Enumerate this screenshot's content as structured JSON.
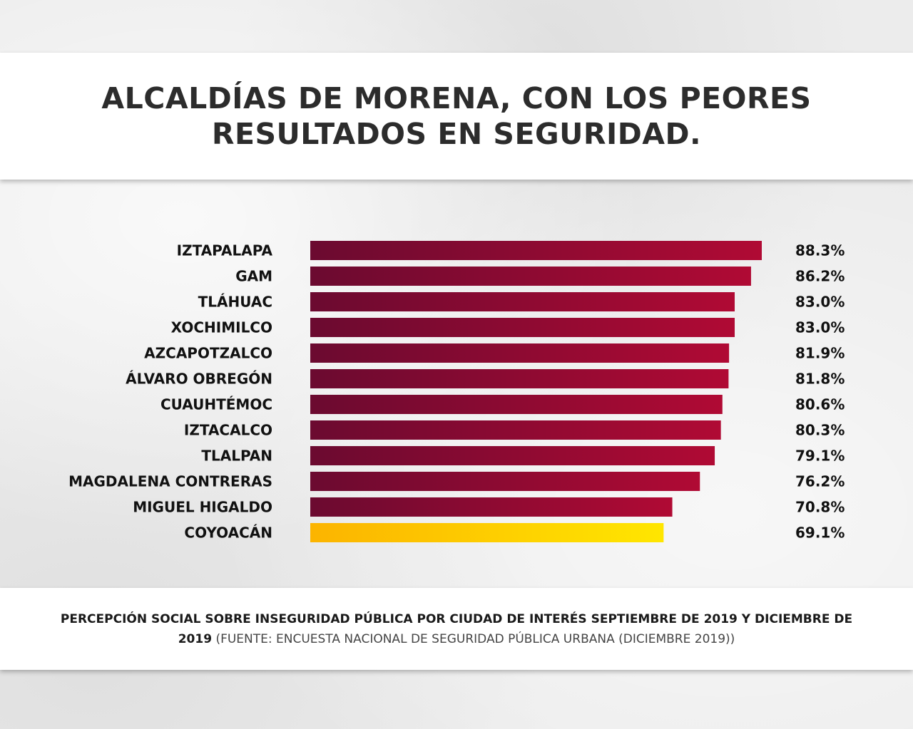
{
  "title": "ALCALDÍAS DE MORENA, CON LOS PEORES RESULTADOS EN SEGURIDAD.",
  "colors": {
    "bar_dark_start": "#6b0a30",
    "bar_dark_end": "#b00a34",
    "bar_highlight_start": "#fcb400",
    "bar_highlight_end": "#ffe600",
    "text": "#111111"
  },
  "chart_data": {
    "type": "bar",
    "orientation": "horizontal",
    "title": "",
    "xlabel": "",
    "ylabel": "",
    "categories": [
      "IZTAPALAPA",
      "GAM",
      "TLÁHUAC",
      "XOCHIMILCO",
      "AZCAPOTZALCO",
      "ÁLVARO OBREGÓN",
      "CUAUHTÉMOC",
      "IZTACALCO",
      "TLALPAN",
      "MAGDALENA CONTRERAS",
      "MIGUEL HIGALDO",
      "COYOACÁN"
    ],
    "values": [
      88.3,
      86.2,
      83.0,
      83.0,
      81.9,
      81.8,
      80.6,
      80.3,
      79.1,
      76.2,
      70.8,
      69.1
    ],
    "value_labels": [
      "88.3%",
      "86.2%",
      "83.0%",
      "83.0%",
      "81.9%",
      "81.8%",
      "80.6%",
      "80.3%",
      "79.1%",
      "76.2%",
      "70.8%",
      "69.1%"
    ],
    "highlight": "COYOACÁN",
    "xlim": [
      0,
      88.3
    ],
    "grid": false,
    "legend": "none"
  },
  "footer": {
    "main": "PERCEPCIÓN SOCIAL SOBRE INSEGURIDAD PÚBLICA POR CIUDAD DE INTERÉS SEPTIEMBRE DE 2019 Y DICIEMBRE DE 2019",
    "source": "(FUENTE: ENCUESTA NACIONAL DE SEGURIDAD PÚBLICA URBANA (DICIEMBRE 2019))"
  }
}
